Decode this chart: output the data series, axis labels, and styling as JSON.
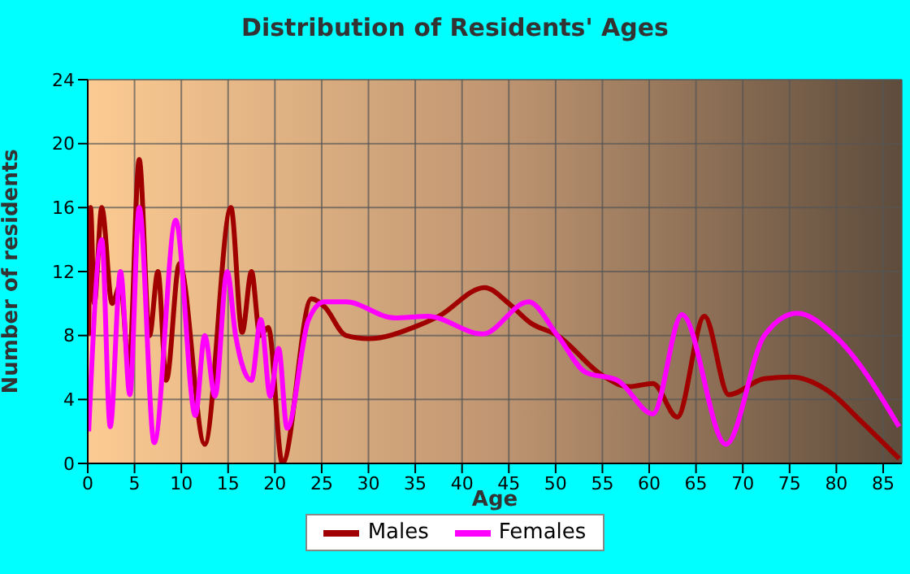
{
  "chart_data": {
    "type": "line",
    "title": "Distribution of Residents' Ages",
    "xlabel": "Age",
    "ylabel": "Number of residents",
    "xlim": [
      0,
      87
    ],
    "xticks": [
      0,
      5,
      10,
      15,
      20,
      25,
      30,
      35,
      40,
      45,
      50,
      55,
      60,
      65,
      70,
      75,
      80,
      85
    ],
    "ylim": [
      0,
      24
    ],
    "yticks": [
      0,
      4,
      8,
      12,
      16,
      20,
      24
    ],
    "grid": true,
    "legend": "bottom",
    "marker": "none",
    "line_style": "solid",
    "series": [
      {
        "name": "Males",
        "color": "#a00000",
        "x": [
          0.1,
          0.3,
          0.7,
          1.5,
          2.6,
          3.5,
          4.4,
          5.5,
          6.6,
          7.5,
          8.4,
          9.8,
          12.5,
          15.3,
          16.5,
          17.5,
          18.4,
          19.3,
          20.8,
          23.9,
          25.3,
          27.6,
          30,
          35.2,
          37.5,
          42.4,
          45,
          47.3,
          50.2,
          55,
          57.8,
          60.4,
          63,
          65.9,
          68.5,
          72.3,
          75.2,
          79.2,
          82.7,
          86.7
        ],
        "values": [
          8,
          16,
          10,
          16,
          10,
          11.2,
          6,
          19,
          8,
          12,
          5.2,
          12.5,
          1.2,
          16,
          8.2,
          12,
          8,
          8.5,
          0,
          10.3,
          9.8,
          8,
          7.8,
          8.6,
          9.2,
          11,
          10,
          8.8,
          8,
          5.5,
          4.8,
          5,
          2.9,
          9.2,
          4.3,
          5.3,
          5.4,
          4.5,
          2.6,
          0.3
        ]
      },
      {
        "name": "Females",
        "color": "#ff00ff",
        "x": [
          0.1,
          1.5,
          2.4,
          3.5,
          4.5,
          5.5,
          7.1,
          9.4,
          11.5,
          12.5,
          13.6,
          14.9,
          15.8,
          17.5,
          18.5,
          19.5,
          20.4,
          21.3,
          23.6,
          25.3,
          27.6,
          32.8,
          36.3,
          42.2,
          47.1,
          50.2,
          53.2,
          56.6,
          60.4,
          63.5,
          68.2,
          72.3,
          75.8,
          79.8,
          86.7
        ],
        "values": [
          2,
          14,
          2.3,
          12,
          4.3,
          16,
          1.3,
          15.2,
          3,
          8,
          4.2,
          12,
          8,
          5.2,
          9,
          4.2,
          7.2,
          2.2,
          9,
          10.1,
          10.1,
          9.1,
          9.2,
          8.1,
          10.1,
          8,
          5.7,
          5.2,
          3.1,
          9.3,
          1.2,
          8,
          9.4,
          8,
          2.3
        ]
      }
    ]
  }
}
